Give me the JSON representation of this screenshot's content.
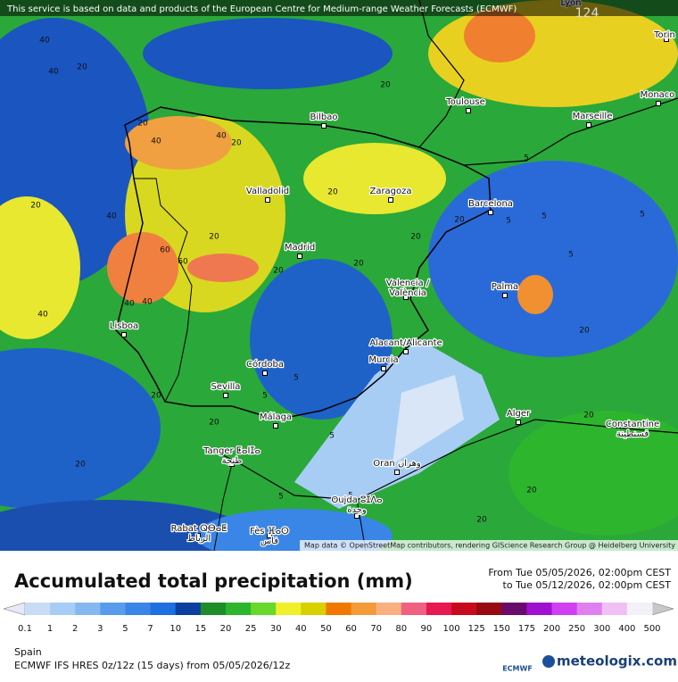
{
  "notice": "This service is based on data and products of the European Centre for Medium-range Weather Forecasts (ECMWF)",
  "attribution": "Map data © OpenStreetMap contributors, rendering GIScience Research Group @ Heidelberg University",
  "map_marker": "124",
  "cities": [
    [
      "Lyon"
    ],
    [
      "Torin"
    ],
    [
      "Monaco"
    ],
    [
      "Toulouse"
    ],
    [
      "Marseille"
    ],
    [
      "Bilbao"
    ],
    [
      "Valladolid"
    ],
    [
      "Zaragoza"
    ],
    [
      "Barcelona"
    ],
    [
      "Madrid"
    ],
    [
      "Valencia /",
      "València"
    ],
    [
      "Palma"
    ],
    [
      "Lisboa"
    ],
    [
      "Alacant/Alicante"
    ],
    [
      "Murcia"
    ],
    [
      "Córdoba"
    ],
    [
      "Sevilla"
    ],
    [
      "Málaga"
    ],
    [
      "Alger"
    ],
    [
      "Constantine",
      "قسنطينة"
    ],
    [
      "Tanger ⵟⴰⵏⵊⴰ",
      "طنجة"
    ],
    [
      "Oran وهران"
    ],
    [
      "Oujda ⵓⵊⴷⴰ",
      "وجدة"
    ],
    [
      "Rabat ⵕⴱⴰⵟ",
      "الرباط"
    ],
    [
      "Fès ⴼⴰⵙ",
      "فاس"
    ]
  ],
  "contour_labels": [
    40,
    40,
    20,
    20,
    40,
    20,
    40,
    20,
    40,
    60,
    60,
    40,
    40,
    20,
    40,
    20,
    20,
    20,
    20,
    20,
    5,
    5,
    5,
    5,
    5,
    20,
    20,
    5,
    5,
    5,
    20,
    20,
    20,
    20,
    5,
    5,
    20,
    20
  ],
  "title": "Accumulated total precipitation (mm)",
  "period": {
    "from": "From Tue 05/05/2026, 02:00pm CEST",
    "to": "to Tue 05/12/2026, 02:00pm CEST"
  },
  "region": "Spain",
  "model": "ECMWF IFS HRES 0z/12z (15 days) from 05/05/2026/12z",
  "ecmwf_logo": "ECMWF",
  "brand": "meteologix.com",
  "legend": {
    "ticks": [
      0.1,
      1,
      2,
      3,
      5,
      7,
      10,
      15,
      20,
      25,
      30,
      40,
      50,
      60,
      70,
      80,
      90,
      100,
      125,
      150,
      175,
      200,
      250,
      300,
      400,
      500
    ],
    "colors": [
      "#c8dcf5",
      "#a8cdf5",
      "#86b8f0",
      "#5a9cec",
      "#3a86e6",
      "#1e6fe0",
      "#0d3fa0",
      "#1e8c28",
      "#2db52e",
      "#68d82c",
      "#f0f02a",
      "#d8d000",
      "#f07800",
      "#f59a3a",
      "#f8b080",
      "#f06080",
      "#e81850",
      "#c80a1e",
      "#960a10",
      "#6a0a6a",
      "#a010d0",
      "#d040f0",
      "#e080f0",
      "#f0c0f5",
      "#f4f0f8"
    ],
    "under_color": "#e8e8f8",
    "over_color": "#c8c8c8"
  }
}
